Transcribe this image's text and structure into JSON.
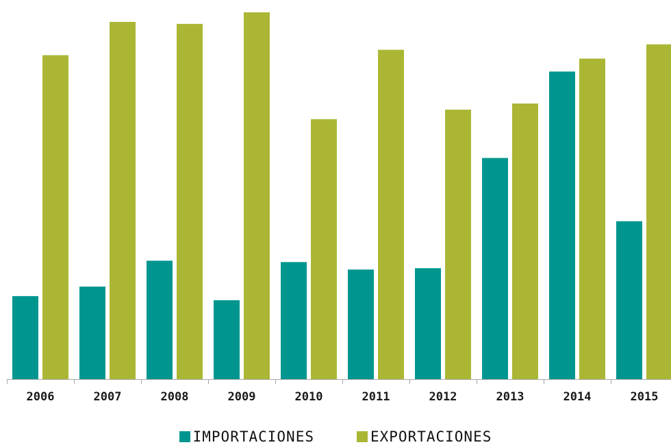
{
  "colors": {
    "importaciones": "#00968f",
    "exportaciones": "#abb734",
    "axis": "#a6a6a6"
  },
  "chart_data": {
    "type": "bar",
    "categories": [
      "2006",
      "2007",
      "2008",
      "2009",
      "2010",
      "2011",
      "2012",
      "2013",
      "2014",
      "2015"
    ],
    "series": [
      {
        "name": "IMPORTACIONES",
        "values": [
          122,
          136,
          174,
          116,
          172,
          161,
          163,
          325,
          452,
          232
        ]
      },
      {
        "name": "EXPORTACIONES",
        "values": [
          476,
          525,
          522,
          539,
          382,
          484,
          396,
          405,
          471,
          492
        ]
      }
    ],
    "title": "",
    "xlabel": "",
    "ylabel": "",
    "ylim": [
      0,
      540
    ],
    "grid": false,
    "legend_position": "bottom"
  }
}
